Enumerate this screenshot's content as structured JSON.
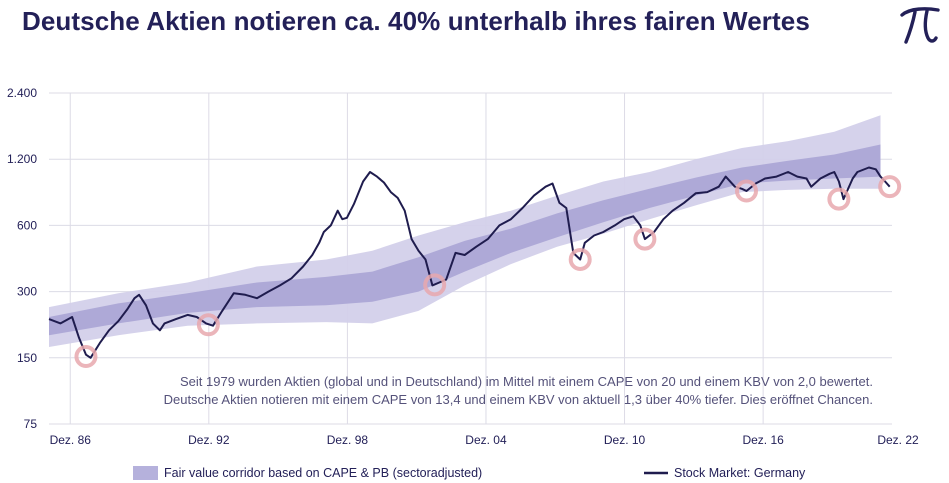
{
  "title": "Deutsche Aktien notieren ca. 40% unterhalb ihres fairen Wertes",
  "logo_text": "π",
  "colors": {
    "line": "#1f1c4e",
    "band_outer": "#d3d0ea",
    "band_inner": "#a7a2d4",
    "marker": "#e8a8ae",
    "grid": "#dcdbe6",
    "text": "#232058"
  },
  "chart_data": {
    "type": "line",
    "title": "Deutsche Aktien notieren ca. 40% unterhalb ihres fairen Wertes",
    "xlabel": "",
    "ylabel": "",
    "y_scale": "log",
    "ylim": [
      75,
      2400
    ],
    "xlim": [
      1986.0,
      2022.5
    ],
    "y_ticks": [
      75,
      150,
      300,
      600,
      1200,
      2400
    ],
    "y_tick_labels": [
      "75",
      "150",
      "300",
      "600",
      "1.200",
      "2.400"
    ],
    "x_ticks": [
      1986.92,
      1992.92,
      1998.92,
      2004.92,
      2010.92,
      2016.92,
      2022.92
    ],
    "x_tick_labels": [
      "Dez. 86",
      "Dez. 92",
      "Dez. 98",
      "Dez. 04",
      "Dez. 10",
      "Dez. 16",
      "Dez. 22"
    ],
    "grid": true,
    "legend_position": "bottom",
    "annotation": [
      "Seit 1979 wurden Aktien (global und in Deutschland) im Mittel mit einem CAPE von 20 und einem KBV von 2,0 bewertet.",
      "Deutsche Aktien notieren mit einem CAPE von 13,4 und einem KBV von aktuell 1,3 über 40% tiefer. Dies eröffnet Chancen."
    ],
    "series": [
      {
        "name": "Stock Market: Germany",
        "type": "line",
        "x": [
          1986.0,
          1986.5,
          1987.0,
          1987.3,
          1987.6,
          1987.8,
          1988.2,
          1988.6,
          1989.0,
          1989.4,
          1989.7,
          1989.9,
          1990.2,
          1990.5,
          1990.8,
          1991.0,
          1991.5,
          1992.0,
          1992.4,
          1992.8,
          1993.1,
          1993.5,
          1994.0,
          1994.5,
          1995.0,
          1995.5,
          1996.0,
          1996.5,
          1997.0,
          1997.4,
          1997.7,
          1997.9,
          1998.2,
          1998.5,
          1998.7,
          1998.9,
          1999.2,
          1999.6,
          1999.9,
          2000.2,
          2000.5,
          2000.8,
          2001.1,
          2001.4,
          2001.7,
          2002.0,
          2002.3,
          2002.6,
          2002.9,
          2003.2,
          2003.6,
          2004.0,
          2004.5,
          2005.0,
          2005.5,
          2006.0,
          2006.5,
          2007.0,
          2007.5,
          2007.8,
          2008.1,
          2008.4,
          2008.7,
          2009.0,
          2009.2,
          2009.6,
          2010.0,
          2010.5,
          2010.9,
          2011.3,
          2011.6,
          2011.8,
          2012.2,
          2012.6,
          2013.0,
          2013.5,
          2014.0,
          2014.5,
          2015.0,
          2015.3,
          2015.7,
          2016.0,
          2016.2,
          2016.6,
          2017.0,
          2017.5,
          2018.0,
          2018.4,
          2018.8,
          2019.0,
          2019.4,
          2019.8,
          2020.0,
          2020.2,
          2020.4,
          2020.8,
          2021.0,
          2021.5,
          2021.8,
          2022.0,
          2022.2,
          2022.4
        ],
        "y": [
          225,
          215,
          230,
          185,
          155,
          150,
          175,
          200,
          220,
          250,
          280,
          290,
          260,
          215,
          200,
          215,
          225,
          235,
          230,
          215,
          210,
          245,
          295,
          290,
          280,
          300,
          320,
          345,
          390,
          440,
          500,
          560,
          600,
          700,
          640,
          650,
          750,
          950,
          1050,
          1000,
          940,
          850,
          800,
          700,
          520,
          460,
          420,
          320,
          330,
          340,
          450,
          440,
          480,
          520,
          600,
          640,
          720,
          820,
          900,
          930,
          760,
          720,
          450,
          420,
          500,
          540,
          560,
          600,
          640,
          660,
          600,
          520,
          560,
          640,
          700,
          760,
          840,
          850,
          900,
          1000,
          900,
          880,
          860,
          930,
          980,
          1000,
          1050,
          1000,
          980,
          900,
          980,
          1030,
          1050,
          950,
          790,
          980,
          1050,
          1100,
          1080,
          1000,
          950,
          900
        ]
      },
      {
        "name": "Fair value corridor based on CAPE & PB (sectoradjusted)",
        "type": "area",
        "x": [
          1986.0,
          1989.0,
          1992.0,
          1995.0,
          1998.0,
          2000.0,
          2002.0,
          2004.0,
          2006.0,
          2008.0,
          2010.0,
          2012.0,
          2014.0,
          2016.0,
          2018.0,
          2020.0,
          2022.0
        ],
        "outer_lower": [
          168,
          190,
          210,
          215,
          218,
          215,
          245,
          320,
          400,
          480,
          550,
          640,
          740,
          850,
          870,
          880,
          880
        ],
        "outer_upper": [
          255,
          295,
          330,
          390,
          420,
          460,
          540,
          620,
          700,
          820,
          950,
          1050,
          1200,
          1350,
          1450,
          1600,
          1900
        ],
        "inner_lower": [
          190,
          215,
          240,
          255,
          260,
          270,
          300,
          370,
          450,
          530,
          620,
          720,
          820,
          930,
          960,
          980,
          1000
        ],
        "inner_upper": [
          230,
          265,
          295,
          330,
          350,
          370,
          430,
          510,
          580,
          680,
          780,
          880,
          990,
          1100,
          1180,
          1260,
          1400
        ]
      }
    ],
    "highlighted_points": [
      {
        "x": 1987.6,
        "y": 152
      },
      {
        "x": 1992.9,
        "y": 212
      },
      {
        "x": 2002.7,
        "y": 322
      },
      {
        "x": 2009.0,
        "y": 420
      },
      {
        "x": 2011.8,
        "y": 520
      },
      {
        "x": 2016.2,
        "y": 860
      },
      {
        "x": 2020.2,
        "y": 790
      },
      {
        "x": 2022.4,
        "y": 900
      }
    ]
  }
}
